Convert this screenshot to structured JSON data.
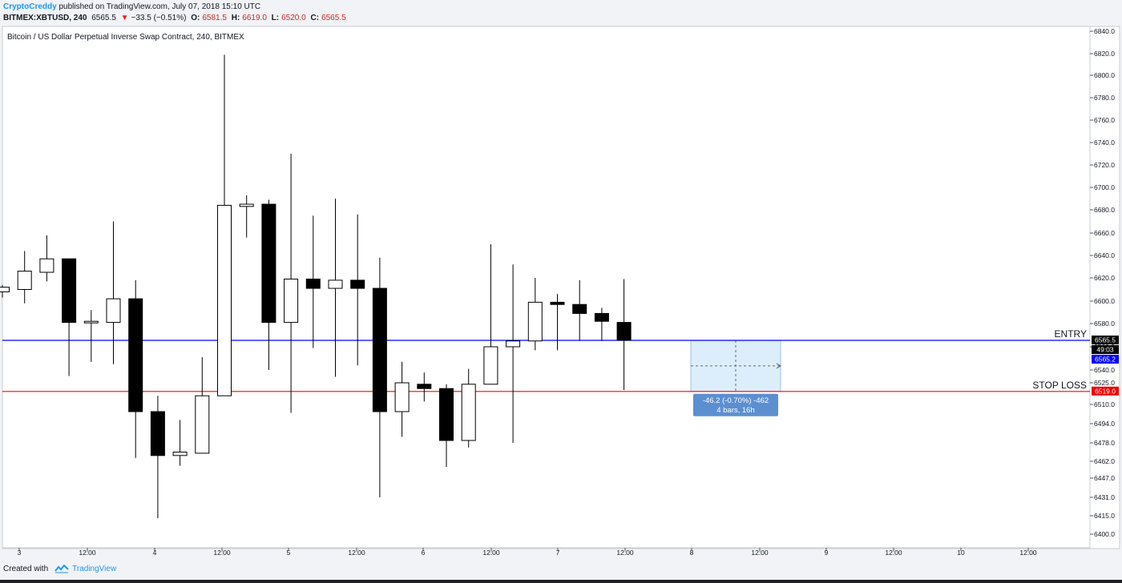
{
  "header": {
    "author": "CryptoCreddy",
    "published": "published on TradingView.com, July 07, 2018 15:10 UTC",
    "symbol": "BITMEX:XBTUSD, 240",
    "last": "6565.5",
    "change_arrow": "▼",
    "change": "−33.5 (−0.51%)",
    "o_label": "O:",
    "o": "6581.5",
    "h_label": "H:",
    "h": "6619.0",
    "l_label": "L:",
    "l": "6520.0",
    "c_label": "C:",
    "c": "6565.5"
  },
  "footer": {
    "created_with": "Created with",
    "brand": "TradingView",
    "logo_icon": "tradingview-logo-icon"
  },
  "colors": {
    "background": "#ffffff",
    "up": "#ffffff",
    "down": "#000000",
    "entry_line": "#0000ff",
    "stop_line": "#ff0000",
    "measure_fill": "#dceefb",
    "measure_label_bg": "#5b8fd0"
  },
  "chart_data": {
    "type": "candlestick",
    "title": "Bitcoin / US Dollar Perpetual Inverse Swap Contract, 240, BITMEX",
    "y_ticks": [
      "6840.0",
      "6820.0",
      "6800.0",
      "6780.0",
      "6760.0",
      "6740.0",
      "6720.0",
      "6700.0",
      "6680.0",
      "6660.0",
      "6640.0",
      "6620.0",
      "6600.0",
      "6580.0",
      "6560.0",
      "6540.0",
      "6525.0",
      "6510.0",
      "6494.0",
      "6478.0",
      "6462.0",
      "6447.0",
      "6431.0",
      "6415.0",
      "6400.0"
    ],
    "x_ticks": [
      "3",
      "12:00",
      "4",
      "12:00",
      "5",
      "12:00",
      "6",
      "12:00",
      "7",
      "12:00",
      "8",
      "12:00",
      "9",
      "12:00",
      "10",
      "12:00"
    ],
    "grid": false,
    "candles": [
      {
        "o": 6608,
        "h": 6614,
        "l": 6603,
        "c": 6612
      },
      {
        "o": 6610,
        "h": 6644,
        "l": 6598,
        "c": 6626
      },
      {
        "o": 6625,
        "h": 6658,
        "l": 6617,
        "c": 6637
      },
      {
        "o": 6637,
        "h": 6637,
        "l": 6533,
        "c": 6581
      },
      {
        "o": 6581,
        "h": 6592,
        "l": 6547,
        "c": 6582
      },
      {
        "o": 6581,
        "h": 6670,
        "l": 6545,
        "c": 6602
      },
      {
        "o": 6602,
        "h": 6618,
        "l": 6465,
        "c": 6504
      },
      {
        "o": 6504,
        "h": 6516,
        "l": 6413,
        "c": 6467
      },
      {
        "o": 6467,
        "h": 6497,
        "l": 6458,
        "c": 6470
      },
      {
        "o": 6469,
        "h": 6551,
        "l": 6469,
        "c": 6516
      },
      {
        "o": 6516,
        "h": 6819,
        "l": 6516,
        "c": 6684
      },
      {
        "o": 6683,
        "h": 6693,
        "l": 6656,
        "c": 6685
      },
      {
        "o": 6685,
        "h": 6689,
        "l": 6540,
        "c": 6581
      },
      {
        "o": 6581,
        "h": 6730,
        "l": 6503,
        "c": 6619
      },
      {
        "o": 6619,
        "h": 6675,
        "l": 6559,
        "c": 6611
      },
      {
        "o": 6611,
        "h": 6690,
        "l": 6532,
        "c": 6618
      },
      {
        "o": 6618,
        "h": 6676,
        "l": 6544,
        "c": 6611
      },
      {
        "o": 6611,
        "h": 6638,
        "l": 6431,
        "c": 6504
      },
      {
        "o": 6504,
        "h": 6547,
        "l": 6483,
        "c": 6525
      },
      {
        "o": 6524,
        "h": 6537,
        "l": 6512,
        "c": 6521
      },
      {
        "o": 6521,
        "h": 6524,
        "l": 6457,
        "c": 6480
      },
      {
        "o": 6480,
        "h": 6541,
        "l": 6474,
        "c": 6524
      },
      {
        "o": 6524,
        "h": 6650,
        "l": 6524,
        "c": 6560
      },
      {
        "o": 6560,
        "h": 6632,
        "l": 6478,
        "c": 6565
      },
      {
        "o": 6565,
        "h": 6620,
        "l": 6557,
        "c": 6599
      },
      {
        "o": 6599,
        "h": 6606,
        "l": 6557,
        "c": 6597
      },
      {
        "o": 6597,
        "h": 6618,
        "l": 6565,
        "c": 6589
      },
      {
        "o": 6589,
        "h": 6594,
        "l": 6565,
        "c": 6582
      },
      {
        "o": 6581,
        "h": 6619,
        "l": 6520,
        "c": 6565.5
      }
    ],
    "lines": [
      {
        "name": "ENTRY",
        "value": 6565.5
      },
      {
        "name": "STOP LOSS",
        "value": 6519.0
      }
    ],
    "price_labels": [
      "6565.5",
      "49:03",
      "6565.2",
      "6519.0"
    ],
    "measure": {
      "label1": "-46.2 (-0.70%) -462",
      "label2": "4 bars, 16h"
    }
  }
}
